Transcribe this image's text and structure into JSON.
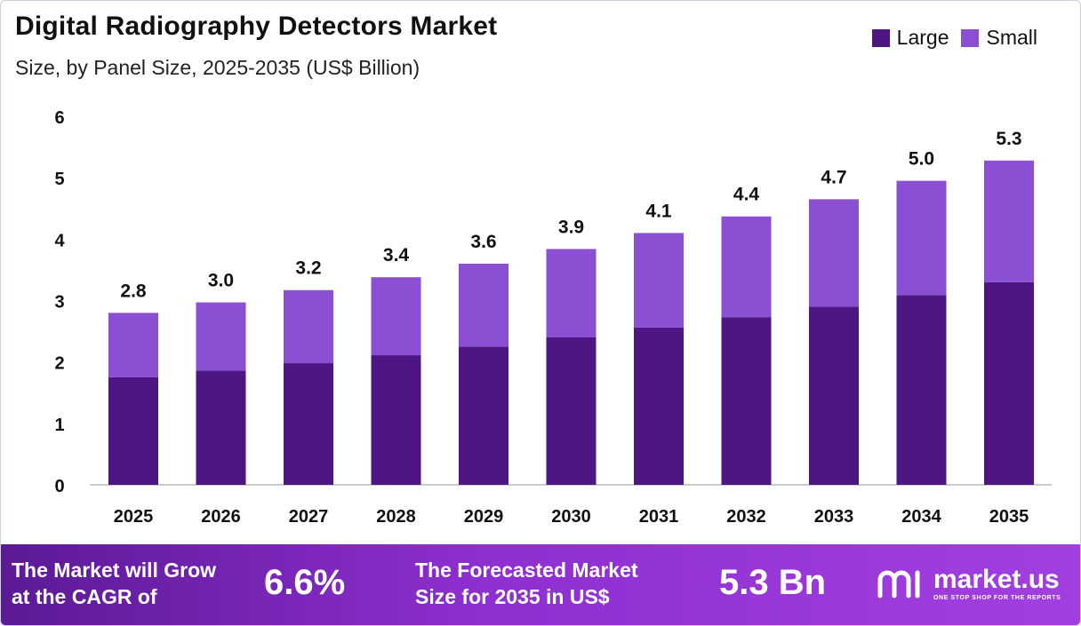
{
  "colors": {
    "large": "#4e1683",
    "small": "#8a4fd2",
    "axis": "#bbbbbb",
    "footer_start": "#5b1a96",
    "footer_end": "#a23fe0"
  },
  "legend": {
    "large_label": "Large",
    "small_label": "Small"
  },
  "chart_data": {
    "type": "bar",
    "stacked": true,
    "title": "Digital Radiography Detectors Market",
    "subtitle": "Size, by Panel Size, 2025-2035 (US$ Billion)",
    "categories": [
      "2025",
      "2026",
      "2027",
      "2028",
      "2029",
      "2030",
      "2031",
      "2032",
      "2033",
      "2034",
      "2035"
    ],
    "series": [
      {
        "name": "Large",
        "values": [
          1.75,
          1.86,
          1.98,
          2.11,
          2.25,
          2.4,
          2.56,
          2.73,
          2.9,
          3.09,
          3.3
        ]
      },
      {
        "name": "Small",
        "values": [
          1.05,
          1.11,
          1.19,
          1.27,
          1.35,
          1.44,
          1.54,
          1.64,
          1.75,
          1.86,
          1.98
        ]
      }
    ],
    "totals_labels": [
      "2.8",
      "3.0",
      "3.2",
      "3.4",
      "3.6",
      "3.9",
      "4.1",
      "4.4",
      "4.7",
      "5.0",
      "5.3"
    ],
    "yticks": [
      "0",
      "1",
      "2",
      "3",
      "4",
      "5",
      "6"
    ],
    "ylim": [
      0,
      6
    ],
    "grid": false,
    "legend_position": "top-right"
  },
  "footer": {
    "cagr_text_line1": "The Market will Grow",
    "cagr_text_line2": "at the CAGR of",
    "cagr_value": "6.6%",
    "forecast_text_line1": "The Forecasted Market",
    "forecast_text_line2": "Size for 2035 in US$",
    "forecast_value": "5.3 Bn",
    "brand_name": "market.us",
    "brand_tagline": "ONE STOP SHOP FOR THE REPORTS"
  }
}
